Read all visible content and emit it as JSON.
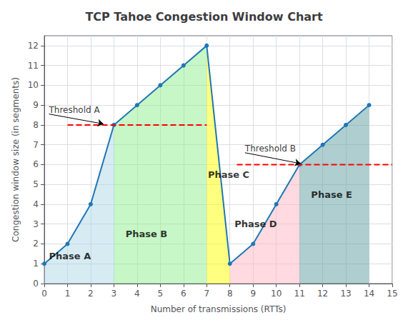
{
  "chart_data": {
    "type": "line",
    "title": "TCP Tahoe Congestion Window Chart",
    "xlabel": "Number of transmissions (RTTs)",
    "ylabel": "Congestion window size (in segments)",
    "x": [
      0,
      1,
      2,
      3,
      4,
      5,
      6,
      7,
      8,
      9,
      10,
      11,
      12,
      13,
      14
    ],
    "values": [
      1,
      2,
      4,
      8,
      9,
      10,
      11,
      12,
      1,
      2,
      4,
      6,
      7,
      8,
      9
    ],
    "color": "#1f77b4",
    "marker": "circle",
    "xlim": [
      0,
      15
    ],
    "xticks": [
      0,
      1,
      2,
      3,
      4,
      5,
      6,
      7,
      8,
      9,
      10,
      11,
      12,
      13,
      14,
      15
    ],
    "ylim": [
      0,
      12.5
    ],
    "yticks": [
      0,
      1,
      2,
      3,
      4,
      5,
      6,
      7,
      8,
      9,
      10,
      11,
      12
    ],
    "grid": true,
    "phases": [
      {
        "name": "Phase A",
        "x_start": 0,
        "x_end": 3,
        "color": "#add8e6",
        "label_x": 0.2,
        "label_y": 1.4
      },
      {
        "name": "Phase B",
        "x_start": 3,
        "x_end": 7,
        "color": "#90ee90",
        "label_x": 3.5,
        "label_y": 2.5
      },
      {
        "name": "Phase C",
        "x_start": 7,
        "x_end": 8,
        "color": "#ffff00",
        "label_x": 7.05,
        "label_y": 5.5
      },
      {
        "name": "Phase D",
        "x_start": 8,
        "x_end": 11,
        "color": "#ffb6c1",
        "label_x": 8.2,
        "label_y": 3.0
      },
      {
        "name": "Phase E",
        "x_start": 11,
        "x_end": 14,
        "color": "#5f9ea0",
        "label_x": 11.5,
        "label_y": 4.5
      }
    ],
    "thresholds": [
      {
        "label": "Threshold A",
        "y": 8,
        "x_start": 1.0,
        "x_end": 7.0,
        "color": "red",
        "line_style": "dashed",
        "label_x": 0.2,
        "label_y": 8.55,
        "arrow_x": 2.55,
        "arrow_y": 8.05
      },
      {
        "label": "Threshold B",
        "y": 6,
        "x_start": 8.3,
        "x_end": 15.0,
        "color": "red",
        "line_style": "dashed",
        "label_x": 8.65,
        "label_y": 6.6,
        "arrow_x": 11.05,
        "arrow_y": 6.05
      }
    ]
  }
}
